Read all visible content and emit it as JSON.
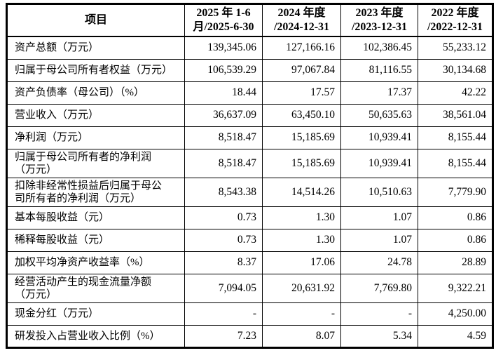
{
  "colors": {
    "background": "#ffffff",
    "border": "#000000",
    "text": "#000000"
  },
  "table": {
    "header": {
      "item_label": "项目",
      "periods": [
        "2025 年 1-6\n月/2025-6-30",
        "2024 年度\n/2024-12-31",
        "2023 年度\n/2023-12-31",
        "2022 年度\n/2022-12-31"
      ]
    },
    "rows": [
      {
        "label": "资产总额（万元）",
        "values": [
          "139,345.06",
          "127,166.16",
          "102,386.45",
          "55,233.12"
        ]
      },
      {
        "label": "归属于母公司所有者权益（万元）",
        "values": [
          "106,539.29",
          "97,067.84",
          "81,116.55",
          "30,134.68"
        ]
      },
      {
        "label": "资产负债率（母公司）（%）",
        "values": [
          "18.44",
          "17.57",
          "17.37",
          "42.22"
        ]
      },
      {
        "label": "营业收入（万元）",
        "values": [
          "36,637.09",
          "63,450.10",
          "50,635.63",
          "38,561.04"
        ]
      },
      {
        "label": "净利润（万元）",
        "values": [
          "8,518.47",
          "15,185.69",
          "10,939.41",
          "8,155.44"
        ]
      },
      {
        "label": "归属于母公司所有者的净利润\n（万元）",
        "values": [
          "8,518.47",
          "15,185.69",
          "10,939.41",
          "8,155.44"
        ]
      },
      {
        "label": "扣除非经常性损益后归属于母公\n司所有者的净利润（万元）",
        "values": [
          "8,543.38",
          "14,514.26",
          "10,510.63",
          "7,779.90"
        ]
      },
      {
        "label": "基本每股收益（元）",
        "values": [
          "0.73",
          "1.30",
          "1.07",
          "0.86"
        ]
      },
      {
        "label": "稀释每股收益（元）",
        "values": [
          "0.73",
          "1.30",
          "1.07",
          "0.86"
        ]
      },
      {
        "label": "加权平均净资产收益率（%）",
        "values": [
          "8.37",
          "17.06",
          "24.78",
          "28.89"
        ]
      },
      {
        "label": "经营活动产生的现金流量净额\n（万元）",
        "values": [
          "7,094.05",
          "20,631.92",
          "7,769.80",
          "9,322.21"
        ]
      },
      {
        "label": "现金分红（万元）",
        "values": [
          "-",
          "-",
          "-",
          "4,250.00"
        ]
      },
      {
        "label": "研发投入占营业收入比例（%）",
        "values": [
          "7.23",
          "8.07",
          "5.34",
          "4.59"
        ]
      }
    ]
  }
}
